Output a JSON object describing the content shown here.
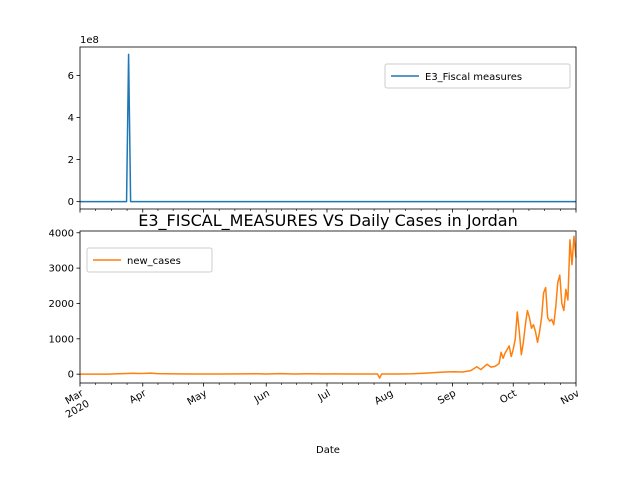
{
  "chart_data": [
    {
      "type": "line",
      "title": "",
      "xlabel": "",
      "ylabel": "",
      "y_multiplier_text": "1e8",
      "ylim": [
        -0.35,
        7.35
      ],
      "yticks": [
        0,
        2,
        4,
        6
      ],
      "yticklabels": [
        "0",
        "2",
        "4",
        "6"
      ],
      "xlim": [
        "2020-03-01",
        "2020-11-01"
      ],
      "legend_position": "upper right",
      "grid": false,
      "series": [
        {
          "name": "E3_Fiscal measures",
          "color": "#1f77b4",
          "points": [
            [
              "2020-03-01",
              0
            ],
            [
              "2020-03-24",
              0
            ],
            [
              "2020-03-25",
              7.0
            ],
            [
              "2020-03-26",
              0
            ],
            [
              "2020-11-01",
              0
            ]
          ]
        }
      ]
    },
    {
      "type": "line",
      "title": "E3_FISCAL_MEASURES VS Daily Cases in Jordan",
      "xlabel": "Date",
      "ylabel": "",
      "ylim": [
        -250,
        4050
      ],
      "yticks": [
        0,
        1000,
        2000,
        3000,
        4000
      ],
      "yticklabels": [
        "0",
        "1000",
        "2000",
        "3000",
        "4000"
      ],
      "xlim": [
        "2020-03-01",
        "2020-11-01"
      ],
      "xticks": [
        {
          "date": "2020-03-01",
          "label": "Mar",
          "sublabel": "2020"
        },
        {
          "date": "2020-04-01",
          "label": "Apr"
        },
        {
          "date": "2020-05-01",
          "label": "May"
        },
        {
          "date": "2020-06-01",
          "label": "Jun"
        },
        {
          "date": "2020-07-01",
          "label": "Jul"
        },
        {
          "date": "2020-08-01",
          "label": "Aug"
        },
        {
          "date": "2020-09-01",
          "label": "Sep"
        },
        {
          "date": "2020-10-01",
          "label": "Oct"
        },
        {
          "date": "2020-11-01",
          "label": "Nov"
        }
      ],
      "legend_position": "upper left",
      "grid": false,
      "series": [
        {
          "name": "new_cases",
          "color": "#ff7f0e",
          "points": [
            [
              "2020-03-01",
              0
            ],
            [
              "2020-03-15",
              2
            ],
            [
              "2020-03-20",
              12
            ],
            [
              "2020-03-24",
              20
            ],
            [
              "2020-03-27",
              25
            ],
            [
              "2020-03-30",
              20
            ],
            [
              "2020-04-02",
              22
            ],
            [
              "2020-04-05",
              30
            ],
            [
              "2020-04-08",
              15
            ],
            [
              "2020-04-12",
              10
            ],
            [
              "2020-04-18",
              8
            ],
            [
              "2020-04-25",
              4
            ],
            [
              "2020-05-01",
              3
            ],
            [
              "2020-05-10",
              5
            ],
            [
              "2020-05-20",
              8
            ],
            [
              "2020-05-28",
              12
            ],
            [
              "2020-06-01",
              6
            ],
            [
              "2020-06-08",
              14
            ],
            [
              "2020-06-15",
              5
            ],
            [
              "2020-06-22",
              10
            ],
            [
              "2020-06-30",
              6
            ],
            [
              "2020-07-05",
              8
            ],
            [
              "2020-07-12",
              4
            ],
            [
              "2020-07-20",
              6
            ],
            [
              "2020-07-26",
              3
            ],
            [
              "2020-07-27",
              -110
            ],
            [
              "2020-07-28",
              5
            ],
            [
              "2020-08-05",
              3
            ],
            [
              "2020-08-12",
              10
            ],
            [
              "2020-08-18",
              25
            ],
            [
              "2020-08-22",
              40
            ],
            [
              "2020-08-26",
              55
            ],
            [
              "2020-08-30",
              65
            ],
            [
              "2020-09-02",
              70
            ],
            [
              "2020-09-06",
              60
            ],
            [
              "2020-09-10",
              100
            ],
            [
              "2020-09-13",
              210
            ],
            [
              "2020-09-15",
              130
            ],
            [
              "2020-09-18",
              280
            ],
            [
              "2020-09-20",
              200
            ],
            [
              "2020-09-22",
              220
            ],
            [
              "2020-09-24",
              300
            ],
            [
              "2020-09-25",
              620
            ],
            [
              "2020-09-26",
              450
            ],
            [
              "2020-09-27",
              600
            ],
            [
              "2020-09-29",
              800
            ],
            [
              "2020-09-30",
              500
            ],
            [
              "2020-10-01",
              700
            ],
            [
              "2020-10-02",
              1000
            ],
            [
              "2020-10-03",
              1760
            ],
            [
              "2020-10-04",
              1200
            ],
            [
              "2020-10-05",
              550
            ],
            [
              "2020-10-06",
              900
            ],
            [
              "2020-10-07",
              1400
            ],
            [
              "2020-10-08",
              1800
            ],
            [
              "2020-10-09",
              1600
            ],
            [
              "2020-10-10",
              1300
            ],
            [
              "2020-10-11",
              1400
            ],
            [
              "2020-10-12",
              1200
            ],
            [
              "2020-10-13",
              900
            ],
            [
              "2020-10-14",
              1200
            ],
            [
              "2020-10-15",
              1600
            ],
            [
              "2020-10-16",
              2300
            ],
            [
              "2020-10-17",
              2450
            ],
            [
              "2020-10-18",
              1600
            ],
            [
              "2020-10-19",
              1500
            ],
            [
              "2020-10-20",
              1550
            ],
            [
              "2020-10-21",
              1400
            ],
            [
              "2020-10-22",
              1900
            ],
            [
              "2020-10-23",
              2600
            ],
            [
              "2020-10-24",
              2800
            ],
            [
              "2020-10-25",
              2000
            ],
            [
              "2020-10-26",
              1800
            ],
            [
              "2020-10-27",
              2400
            ],
            [
              "2020-10-28",
              2100
            ],
            [
              "2020-10-29",
              3800
            ],
            [
              "2020-10-30",
              3100
            ],
            [
              "2020-10-31",
              3900
            ],
            [
              "2020-11-01",
              3300
            ]
          ]
        }
      ]
    }
  ]
}
